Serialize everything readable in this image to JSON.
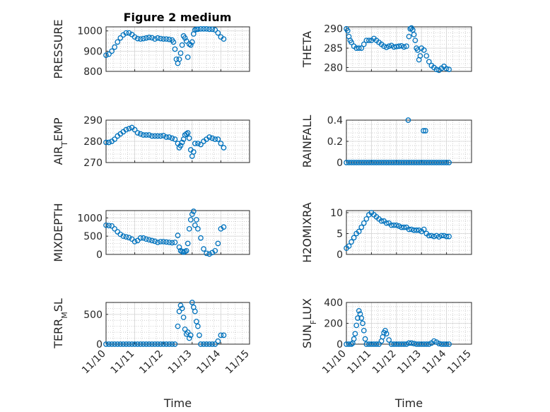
{
  "figure_title": "Figure 2 medium",
  "colors": {
    "marker": "#0072bd",
    "axis": "#262626"
  },
  "chart_data": [
    {
      "type": "scatter",
      "id": "pressure",
      "title": "Figure 2 medium",
      "ylabel": "PRESSURE",
      "xlabel": "",
      "ylim": [
        800,
        1020
      ],
      "yticks": [
        "800",
        "900",
        "1000"
      ],
      "xlim": [
        0,
        5
      ],
      "x": [
        0,
        0.1,
        0.2,
        0.3,
        0.4,
        0.5,
        0.6,
        0.7,
        0.8,
        0.9,
        1.0,
        1.1,
        1.2,
        1.3,
        1.4,
        1.5,
        1.6,
        1.7,
        1.8,
        1.9,
        2.0,
        2.1,
        2.2,
        2.3,
        2.35,
        2.4,
        2.45,
        2.5,
        2.55,
        2.6,
        2.65,
        2.7,
        2.75,
        2.8,
        2.85,
        2.9,
        2.95,
        3.0,
        3.05,
        3.1,
        3.15,
        3.2,
        3.3,
        3.4,
        3.5,
        3.6,
        3.7,
        3.8,
        3.9,
        4.0,
        4.1
      ],
      "y": [
        880,
        885,
        900,
        920,
        945,
        965,
        980,
        990,
        990,
        982,
        970,
        962,
        960,
        962,
        965,
        968,
        966,
        960,
        965,
        962,
        960,
        960,
        958,
        955,
        945,
        910,
        860,
        840,
        860,
        890,
        930,
        975,
        965,
        950,
        870,
        935,
        930,
        945,
        985,
        1005,
        1008,
        1008,
        1010,
        1010,
        1010,
        1008,
        1008,
        1005,
        990,
        970,
        960
      ]
    },
    {
      "type": "scatter",
      "id": "theta",
      "ylabel": "THETA",
      "xlabel": "",
      "ylim": [
        279,
        290.5
      ],
      "yticks": [
        "280",
        "285",
        "290"
      ],
      "xlim": [
        0,
        5
      ],
      "x": [
        0,
        0.05,
        0.1,
        0.15,
        0.2,
        0.3,
        0.4,
        0.5,
        0.6,
        0.7,
        0.8,
        0.9,
        1.0,
        1.1,
        1.2,
        1.3,
        1.4,
        1.5,
        1.6,
        1.7,
        1.8,
        1.9,
        2.0,
        2.1,
        2.2,
        2.3,
        2.4,
        2.5,
        2.55,
        2.6,
        2.65,
        2.7,
        2.75,
        2.8,
        2.85,
        2.9,
        2.95,
        3.0,
        3.1,
        3.2,
        3.3,
        3.4,
        3.5,
        3.6,
        3.7,
        3.8,
        3.9,
        4.0,
        4.1
      ],
      "y": [
        290,
        289.5,
        288,
        287,
        286.5,
        285.5,
        285,
        285,
        285,
        286,
        287,
        287,
        287,
        287.5,
        287,
        286.5,
        286,
        285.5,
        285.2,
        285.5,
        285.7,
        285.3,
        285.4,
        285.5,
        285.6,
        285.3,
        285.5,
        288,
        290,
        290.2,
        289.7,
        288.5,
        287,
        285,
        284.5,
        282,
        283,
        285,
        284.5,
        283,
        281.5,
        280.5,
        280,
        279.5,
        279.3,
        279.8,
        280.3,
        279.7,
        279.5
      ]
    },
    {
      "type": "scatter",
      "id": "air_temp",
      "ylabel": "AIR_TEMP",
      "xlabel": "",
      "ylim": [
        270,
        290
      ],
      "yticks": [
        "270",
        "280",
        "290"
      ],
      "xlim": [
        0,
        5
      ],
      "x": [
        0,
        0.1,
        0.2,
        0.3,
        0.4,
        0.5,
        0.6,
        0.7,
        0.8,
        0.9,
        1.0,
        1.1,
        1.2,
        1.3,
        1.4,
        1.5,
        1.6,
        1.7,
        1.8,
        1.9,
        2.0,
        2.1,
        2.2,
        2.3,
        2.4,
        2.5,
        2.55,
        2.6,
        2.65,
        2.7,
        2.75,
        2.8,
        2.85,
        2.9,
        2.95,
        3.0,
        3.05,
        3.1,
        3.2,
        3.3,
        3.4,
        3.5,
        3.6,
        3.7,
        3.8,
        3.9,
        4.0,
        4.1
      ],
      "y": [
        279.5,
        279.5,
        280,
        281,
        282.5,
        283.5,
        284.5,
        285.5,
        286,
        286.5,
        285.5,
        284,
        283.5,
        283,
        283,
        283,
        282.5,
        282.5,
        282.5,
        282.5,
        282.7,
        282,
        282,
        281.5,
        281,
        279,
        277,
        278,
        279.5,
        281,
        283,
        283.5,
        284,
        281.5,
        276,
        273,
        275,
        279,
        279,
        278.5,
        280,
        281,
        282,
        281.5,
        281,
        281,
        279,
        277
      ]
    },
    {
      "type": "scatter",
      "id": "rainfall",
      "ylabel": "RAINFALL",
      "xlabel": "",
      "ylim": [
        0,
        0.4
      ],
      "yticks": [
        "0",
        "0.2",
        "0.4"
      ],
      "xlim": [
        0,
        5
      ],
      "x": [
        0,
        0.1,
        0.2,
        0.3,
        0.4,
        0.5,
        0.6,
        0.7,
        0.8,
        0.9,
        1.0,
        1.1,
        1.2,
        1.3,
        1.4,
        1.5,
        1.6,
        1.7,
        1.8,
        1.9,
        2.0,
        2.1,
        2.2,
        2.3,
        2.4,
        2.5,
        2.6,
        2.7,
        2.8,
        2.9,
        3.0,
        3.1,
        3.2,
        3.3,
        3.4,
        3.5,
        3.6,
        3.7,
        3.8,
        3.9,
        4.0,
        4.1,
        2.47,
        3.08,
        3.16
      ],
      "y": [
        0,
        0,
        0,
        0,
        0,
        0,
        0,
        0,
        0,
        0,
        0,
        0,
        0,
        0,
        0,
        0,
        0,
        0,
        0,
        0,
        0,
        0,
        0,
        0,
        0,
        0,
        0,
        0,
        0,
        0,
        0,
        0,
        0,
        0,
        0,
        0,
        0,
        0,
        0,
        0,
        0,
        0,
        0.4,
        0.3,
        0.3
      ]
    },
    {
      "type": "scatter",
      "id": "mixdepth",
      "ylabel": "MIXDEPTH",
      "xlabel": "",
      "ylim": [
        0,
        1200
      ],
      "yticks": [
        "0",
        "500",
        "1000"
      ],
      "xlim": [
        0,
        5
      ],
      "x": [
        0,
        0.1,
        0.2,
        0.3,
        0.4,
        0.5,
        0.6,
        0.7,
        0.8,
        0.9,
        1.0,
        1.1,
        1.2,
        1.3,
        1.4,
        1.5,
        1.6,
        1.7,
        1.8,
        1.9,
        2.0,
        2.1,
        2.2,
        2.3,
        2.4,
        2.5,
        2.55,
        2.6,
        2.65,
        2.7,
        2.75,
        2.8,
        2.85,
        2.9,
        2.95,
        3.0,
        3.05,
        3.1,
        3.15,
        3.2,
        3.3,
        3.4,
        3.5,
        3.6,
        3.7,
        3.8,
        3.9,
        4.0,
        4.1
      ],
      "y": [
        800,
        790,
        780,
        700,
        620,
        550,
        500,
        480,
        460,
        420,
        350,
        380,
        450,
        450,
        420,
        400,
        380,
        360,
        330,
        350,
        350,
        340,
        330,
        320,
        330,
        520,
        200,
        100,
        80,
        60,
        80,
        100,
        300,
        700,
        950,
        1100,
        1180,
        800,
        950,
        700,
        450,
        150,
        30,
        10,
        50,
        100,
        300,
        700,
        750
      ]
    },
    {
      "type": "scatter",
      "id": "h2omixra",
      "ylabel": "H2OMIXRA",
      "xlabel": "",
      "ylim": [
        0,
        10.5
      ],
      "yticks": [
        "0",
        "5",
        "10"
      ],
      "xlim": [
        0,
        5
      ],
      "x": [
        0,
        0.1,
        0.2,
        0.3,
        0.4,
        0.5,
        0.6,
        0.7,
        0.8,
        0.9,
        1.0,
        1.1,
        1.2,
        1.3,
        1.4,
        1.5,
        1.6,
        1.7,
        1.8,
        1.9,
        2.0,
        2.1,
        2.2,
        2.3,
        2.4,
        2.5,
        2.6,
        2.7,
        2.8,
        2.9,
        3.0,
        3.1,
        3.2,
        3.3,
        3.4,
        3.5,
        3.6,
        3.7,
        3.8,
        3.9,
        4.0,
        4.1
      ],
      "y": [
        1.5,
        2,
        3,
        4,
        5,
        5.5,
        6.5,
        7.5,
        8.5,
        9.5,
        10,
        9.5,
        9,
        8.5,
        8,
        8,
        7.5,
        7.5,
        7,
        7,
        7,
        6.8,
        6.5,
        6.5,
        6.5,
        6,
        6,
        5.8,
        5.8,
        5.8,
        5.5,
        6,
        5,
        4.5,
        4.5,
        4.3,
        4.5,
        4.2,
        4.5,
        4.5,
        4.3,
        4.3
      ]
    },
    {
      "type": "scatter",
      "id": "terr_msl",
      "ylabel": "TERR_MSL",
      "xlabel": "Time",
      "ylim": [
        0,
        700
      ],
      "yticks": [
        "0",
        "500"
      ],
      "xlim": [
        0,
        5
      ],
      "xticklabels": [
        "11/10",
        "11/11",
        "11/12",
        "11/13",
        "11/14",
        "11/15"
      ],
      "x": [
        0,
        0.1,
        0.2,
        0.3,
        0.4,
        0.5,
        0.6,
        0.7,
        0.8,
        0.9,
        1.0,
        1.1,
        1.2,
        1.3,
        1.4,
        1.5,
        1.6,
        1.7,
        1.8,
        1.9,
        2.0,
        2.1,
        2.2,
        2.3,
        2.4,
        2.5,
        2.55,
        2.6,
        2.65,
        2.7,
        2.75,
        2.8,
        2.85,
        2.9,
        2.95,
        3.0,
        3.05,
        3.1,
        3.15,
        3.2,
        3.25,
        3.3,
        3.4,
        3.5,
        3.6,
        3.7,
        3.8,
        3.9,
        4.0,
        4.1
      ],
      "y": [
        0,
        0,
        0,
        0,
        0,
        0,
        0,
        0,
        0,
        0,
        0,
        0,
        0,
        0,
        0,
        0,
        0,
        0,
        0,
        0,
        0,
        0,
        0,
        0,
        0,
        300,
        550,
        650,
        600,
        450,
        250,
        170,
        200,
        100,
        150,
        700,
        620,
        550,
        380,
        300,
        150,
        0,
        0,
        0,
        0,
        0,
        0,
        50,
        150,
        150
      ]
    },
    {
      "type": "scatter",
      "id": "sun_flux",
      "ylabel": "SUN_FLUX",
      "xlabel": "Time",
      "ylim": [
        0,
        400
      ],
      "yticks": [
        "0",
        "200",
        "400"
      ],
      "xlim": [
        0,
        5
      ],
      "xticklabels": [
        "11/10",
        "11/11",
        "11/12",
        "11/13",
        "11/14",
        "11/15"
      ],
      "x": [
        0,
        0.1,
        0.2,
        0.25,
        0.3,
        0.35,
        0.4,
        0.45,
        0.5,
        0.55,
        0.6,
        0.65,
        0.7,
        0.75,
        0.8,
        0.9,
        1.0,
        1.1,
        1.2,
        1.3,
        1.4,
        1.45,
        1.5,
        1.55,
        1.6,
        1.7,
        1.8,
        1.9,
        2.0,
        2.1,
        2.2,
        2.3,
        2.4,
        2.5,
        2.6,
        2.7,
        2.8,
        2.9,
        3.0,
        3.1,
        3.2,
        3.3,
        3.4,
        3.5,
        3.6,
        3.7,
        3.8,
        3.9,
        4.0,
        4.1
      ],
      "y": [
        0,
        0,
        0,
        10,
        50,
        100,
        180,
        250,
        320,
        290,
        250,
        200,
        130,
        50,
        0,
        0,
        0,
        0,
        0,
        0,
        30,
        70,
        110,
        130,
        100,
        40,
        0,
        0,
        0,
        0,
        0,
        0,
        0,
        10,
        10,
        5,
        0,
        0,
        0,
        0,
        0,
        0,
        10,
        30,
        20,
        5,
        0,
        0,
        0,
        0
      ]
    }
  ]
}
